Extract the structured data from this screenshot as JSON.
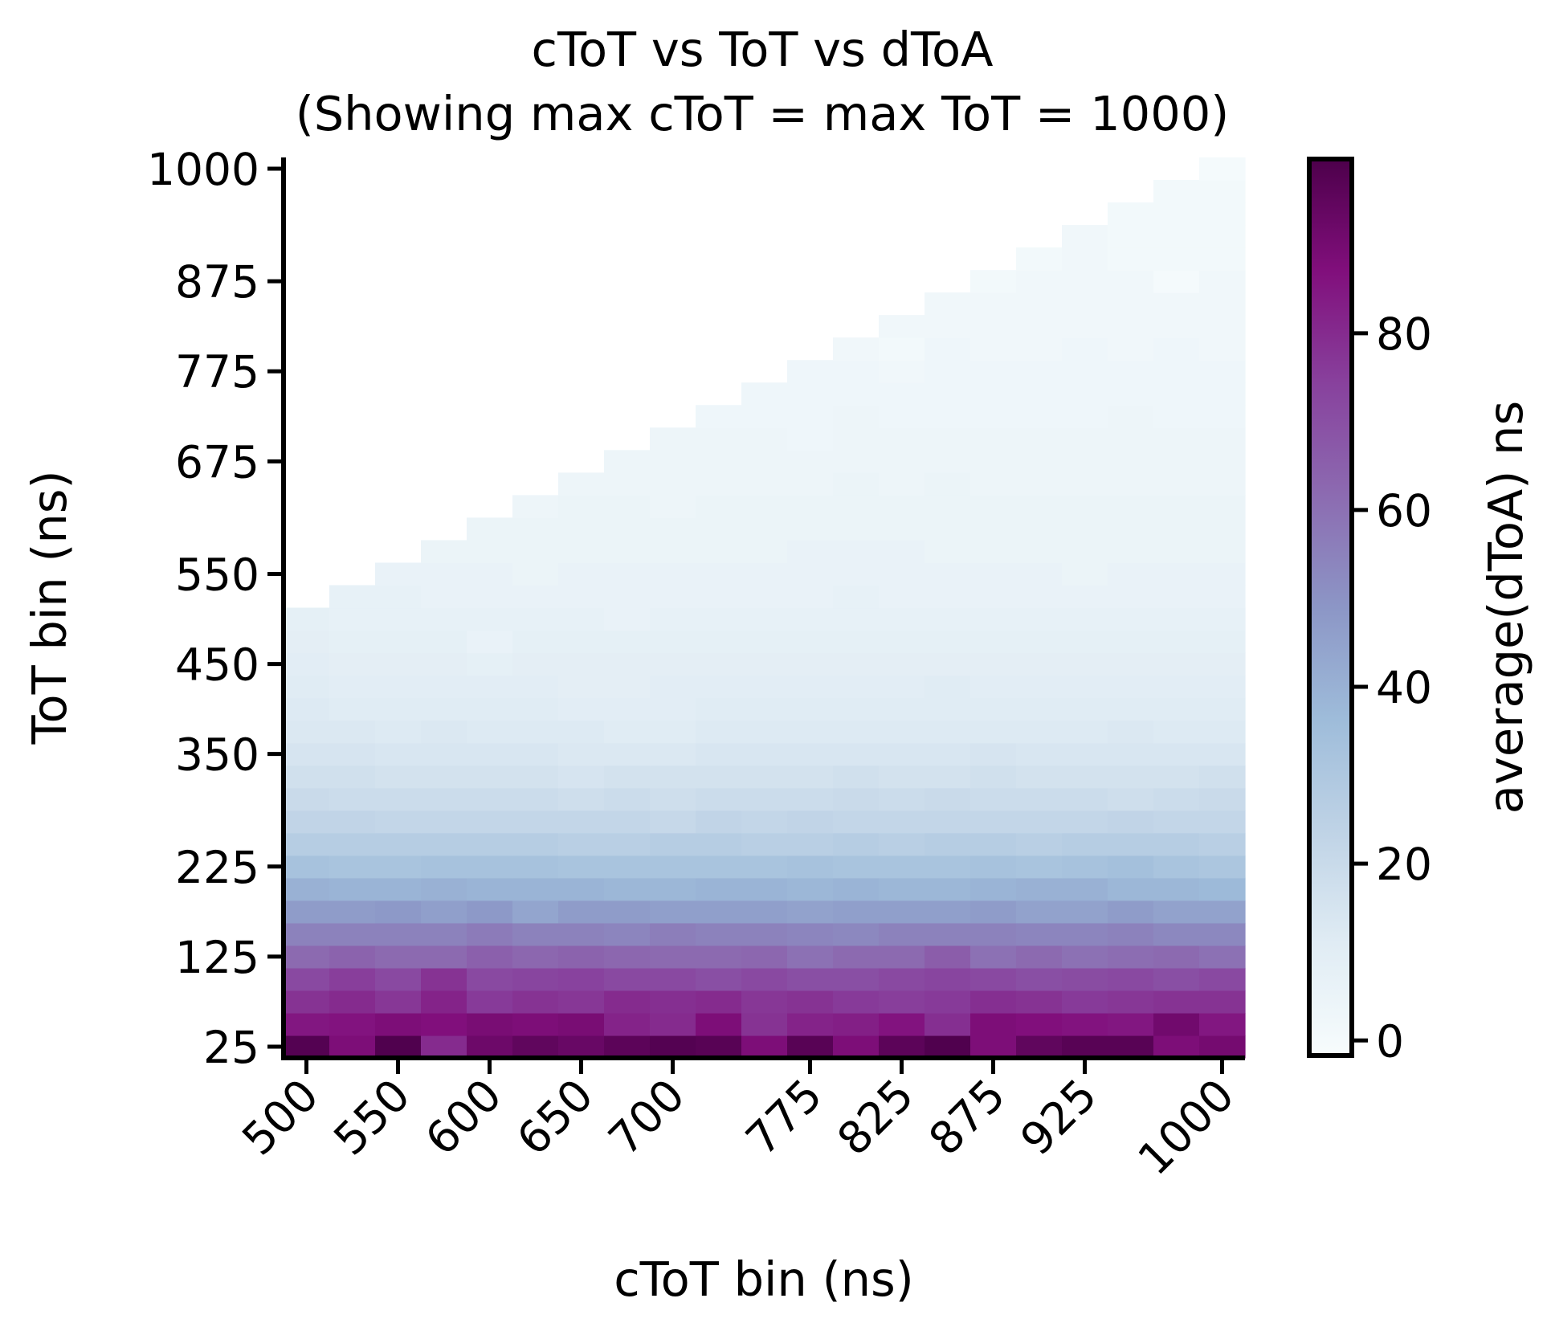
{
  "chart_data": {
    "type": "heatmap",
    "title": [
      "cToT vs ToT vs dToA",
      "(Showing max cToT = max ToT = 1000)"
    ],
    "x_label": "cToT bin (ns)",
    "y_label": "ToT bin (ns)",
    "colorbar_label": "average(dToA) ns",
    "colormap": "BuPu",
    "x": [
      500,
      525,
      550,
      575,
      600,
      625,
      650,
      675,
      700,
      725,
      750,
      775,
      800,
      825,
      850,
      875,
      900,
      925,
      950,
      975,
      1000
    ],
    "y": [
      25,
      50,
      75,
      100,
      125,
      150,
      175,
      200,
      225,
      250,
      275,
      300,
      325,
      350,
      375,
      400,
      425,
      450,
      475,
      500,
      525,
      550,
      575,
      600,
      625,
      650,
      675,
      700,
      725,
      750,
      775,
      800,
      825,
      850,
      875,
      900,
      925,
      950,
      975,
      1000
    ],
    "xlim": [
      487.5,
      1012.5
    ],
    "ylim": [
      12.5,
      1012.5
    ],
    "xticks": [
      500,
      550,
      600,
      650,
      700,
      775,
      825,
      875,
      925,
      1000
    ],
    "yticks": [
      25,
      125,
      225,
      350,
      450,
      550,
      675,
      775,
      875,
      1000
    ],
    "clim": [
      -1.7,
      99.7
    ],
    "cticks": [
      0,
      20,
      40,
      60,
      80
    ],
    "z": [
      [
        98,
        88,
        99,
        80,
        92,
        95,
        93,
        96,
        98,
        97,
        88,
        97,
        88,
        96,
        99,
        88,
        95,
        97,
        97,
        88,
        90
      ],
      [
        85,
        86,
        88,
        87,
        89,
        88,
        89,
        82,
        80,
        88,
        78,
        82,
        83,
        86,
        79,
        88,
        87,
        86,
        85,
        91,
        85
      ],
      [
        78,
        80,
        77,
        82,
        76,
        78,
        77,
        80,
        79,
        80,
        77,
        78,
        76,
        75,
        76,
        79,
        78,
        76,
        77,
        78,
        78
      ],
      [
        72,
        75,
        72,
        78,
        72,
        73,
        74,
        72,
        72,
        70,
        72,
        70,
        70,
        72,
        73,
        72,
        70,
        71,
        72,
        70,
        72
      ],
      [
        62,
        64,
        62,
        62,
        65,
        63,
        64,
        63,
        62,
        62,
        63,
        60,
        62,
        62,
        66,
        60,
        62,
        60,
        61,
        62,
        60
      ],
      [
        55,
        55,
        55,
        55,
        57,
        55,
        55,
        54,
        56,
        55,
        55,
        54,
        53,
        55,
        55,
        55,
        54,
        54,
        55,
        53,
        53
      ],
      [
        47,
        47,
        48,
        46,
        48,
        44,
        47,
        47,
        46,
        46,
        46,
        45,
        46,
        46,
        46,
        47,
        45,
        45,
        47,
        45,
        45
      ],
      [
        40,
        39,
        39,
        40,
        39,
        39,
        39,
        38,
        38,
        39,
        39,
        38,
        39,
        38,
        38,
        39,
        40,
        40,
        38,
        38,
        37
      ],
      [
        33,
        32,
        32,
        33,
        33,
        33,
        32,
        32,
        32,
        32,
        32,
        33,
        32,
        32,
        32,
        33,
        32,
        33,
        34,
        32,
        31
      ],
      [
        27,
        27,
        27,
        27,
        27,
        27,
        26,
        26,
        27,
        27,
        26,
        26,
        27,
        26,
        27,
        27,
        26,
        27,
        27,
        27,
        26
      ],
      [
        23,
        23,
        22,
        22,
        22,
        22,
        22,
        22,
        21,
        23,
        22,
        23,
        22,
        22,
        22,
        22,
        22,
        22,
        23,
        22,
        22
      ],
      [
        20,
        19,
        19,
        19,
        19,
        19,
        18,
        19,
        18,
        19,
        19,
        19,
        20,
        19,
        20,
        19,
        19,
        19,
        18,
        19,
        20
      ],
      [
        17,
        17,
        16,
        16,
        16,
        16,
        15,
        16,
        16,
        16,
        16,
        16,
        17,
        16,
        16,
        17,
        16,
        16,
        16,
        16,
        17
      ],
      [
        15,
        15,
        14,
        14,
        14,
        14,
        13,
        13,
        13,
        14,
        14,
        14,
        14,
        14,
        14,
        15,
        14,
        14,
        14,
        14,
        14
      ],
      [
        13,
        13,
        12,
        13,
        12,
        12,
        12,
        11,
        11,
        12,
        12,
        12,
        12,
        12,
        12,
        12,
        12,
        12,
        13,
        12,
        12
      ],
      [
        12,
        11,
        11,
        11,
        11,
        11,
        10,
        10,
        10,
        11,
        11,
        11,
        11,
        11,
        11,
        11,
        11,
        11,
        11,
        11,
        11
      ],
      [
        11,
        10,
        10,
        10,
        10,
        10,
        9,
        9,
        10,
        10,
        10,
        10,
        10,
        10,
        11,
        10,
        10,
        10,
        10,
        10,
        10
      ],
      [
        10,
        9,
        9,
        9,
        8,
        9,
        9,
        9,
        9,
        9,
        9,
        9,
        9,
        9,
        9,
        9,
        9,
        9,
        9,
        9,
        9
      ],
      [
        9,
        8,
        8,
        8,
        6,
        8,
        8,
        8,
        8,
        8,
        8,
        8,
        8,
        8,
        8,
        8,
        8,
        8,
        8,
        8,
        8
      ],
      [
        8,
        7,
        7,
        7,
        7,
        7,
        7,
        6,
        7,
        7,
        7,
        7,
        7,
        7,
        7,
        7,
        7,
        7,
        7,
        7,
        7
      ],
      [
        null,
        7,
        7,
        6,
        6,
        6,
        6,
        6,
        6,
        6,
        6,
        6,
        7,
        6,
        6,
        6,
        6,
        6,
        6,
        6,
        6
      ],
      [
        null,
        null,
        6,
        6,
        6,
        5,
        6,
        6,
        6,
        6,
        6,
        6,
        6,
        6,
        6,
        6,
        6,
        5,
        6,
        6,
        6
      ],
      [
        null,
        null,
        null,
        5,
        5,
        5,
        5,
        5,
        5,
        5,
        5,
        6,
        6,
        6,
        5,
        5,
        5,
        5,
        5,
        5,
        5
      ],
      [
        null,
        null,
        null,
        null,
        5,
        5,
        5,
        5,
        5,
        5,
        5,
        5,
        5,
        5,
        5,
        5,
        5,
        5,
        5,
        5,
        5
      ],
      [
        null,
        null,
        null,
        null,
        null,
        4,
        5,
        5,
        4,
        5,
        5,
        5,
        5,
        5,
        5,
        5,
        5,
        5,
        5,
        5,
        5
      ],
      [
        null,
        null,
        null,
        null,
        null,
        null,
        4,
        4,
        4,
        4,
        4,
        4,
        5,
        4,
        5,
        4,
        4,
        4,
        4,
        4,
        4
      ],
      [
        null,
        null,
        null,
        null,
        null,
        null,
        null,
        4,
        4,
        4,
        4,
        4,
        4,
        4,
        4,
        4,
        4,
        4,
        4,
        4,
        4
      ],
      [
        null,
        null,
        null,
        null,
        null,
        null,
        null,
        null,
        4,
        4,
        4,
        3,
        4,
        4,
        4,
        4,
        4,
        4,
        4,
        4,
        4
      ],
      [
        null,
        null,
        null,
        null,
        null,
        null,
        null,
        null,
        null,
        3,
        3,
        3,
        4,
        3,
        3,
        3,
        3,
        3,
        4,
        3,
        3
      ],
      [
        null,
        null,
        null,
        null,
        null,
        null,
        null,
        null,
        null,
        null,
        3,
        3,
        3,
        3,
        3,
        3,
        3,
        3,
        3,
        3,
        3
      ],
      [
        null,
        null,
        null,
        null,
        null,
        null,
        null,
        null,
        null,
        null,
        null,
        3,
        3,
        2,
        3,
        3,
        3,
        3,
        3,
        3,
        3
      ],
      [
        null,
        null,
        null,
        null,
        null,
        null,
        null,
        null,
        null,
        null,
        null,
        null,
        2,
        1,
        3,
        2,
        2,
        3,
        2,
        3,
        2
      ],
      [
        null,
        null,
        null,
        null,
        null,
        null,
        null,
        null,
        null,
        null,
        null,
        null,
        null,
        2,
        2,
        2,
        2,
        2,
        2,
        2,
        2
      ],
      [
        null,
        null,
        null,
        null,
        null,
        null,
        null,
        null,
        null,
        null,
        null,
        null,
        null,
        null,
        2,
        2,
        2,
        2,
        2,
        2,
        2
      ],
      [
        null,
        null,
        null,
        null,
        null,
        null,
        null,
        null,
        null,
        null,
        null,
        null,
        null,
        null,
        null,
        1,
        2,
        2,
        2,
        0,
        2
      ],
      [
        null,
        null,
        null,
        null,
        null,
        null,
        null,
        null,
        null,
        null,
        null,
        null,
        null,
        null,
        null,
        null,
        1,
        2,
        1,
        1,
        1
      ],
      [
        null,
        null,
        null,
        null,
        null,
        null,
        null,
        null,
        null,
        null,
        null,
        null,
        null,
        null,
        null,
        null,
        null,
        2,
        1,
        1,
        1
      ],
      [
        null,
        null,
        null,
        null,
        null,
        null,
        null,
        null,
        null,
        null,
        null,
        null,
        null,
        null,
        null,
        null,
        null,
        null,
        1,
        1,
        1
      ],
      [
        null,
        null,
        null,
        null,
        null,
        null,
        null,
        null,
        null,
        null,
        null,
        null,
        null,
        null,
        null,
        null,
        null,
        null,
        null,
        1,
        1
      ],
      [
        null,
        null,
        null,
        null,
        null,
        null,
        null,
        null,
        null,
        null,
        null,
        null,
        null,
        null,
        null,
        null,
        null,
        null,
        null,
        null,
        0
      ]
    ]
  }
}
